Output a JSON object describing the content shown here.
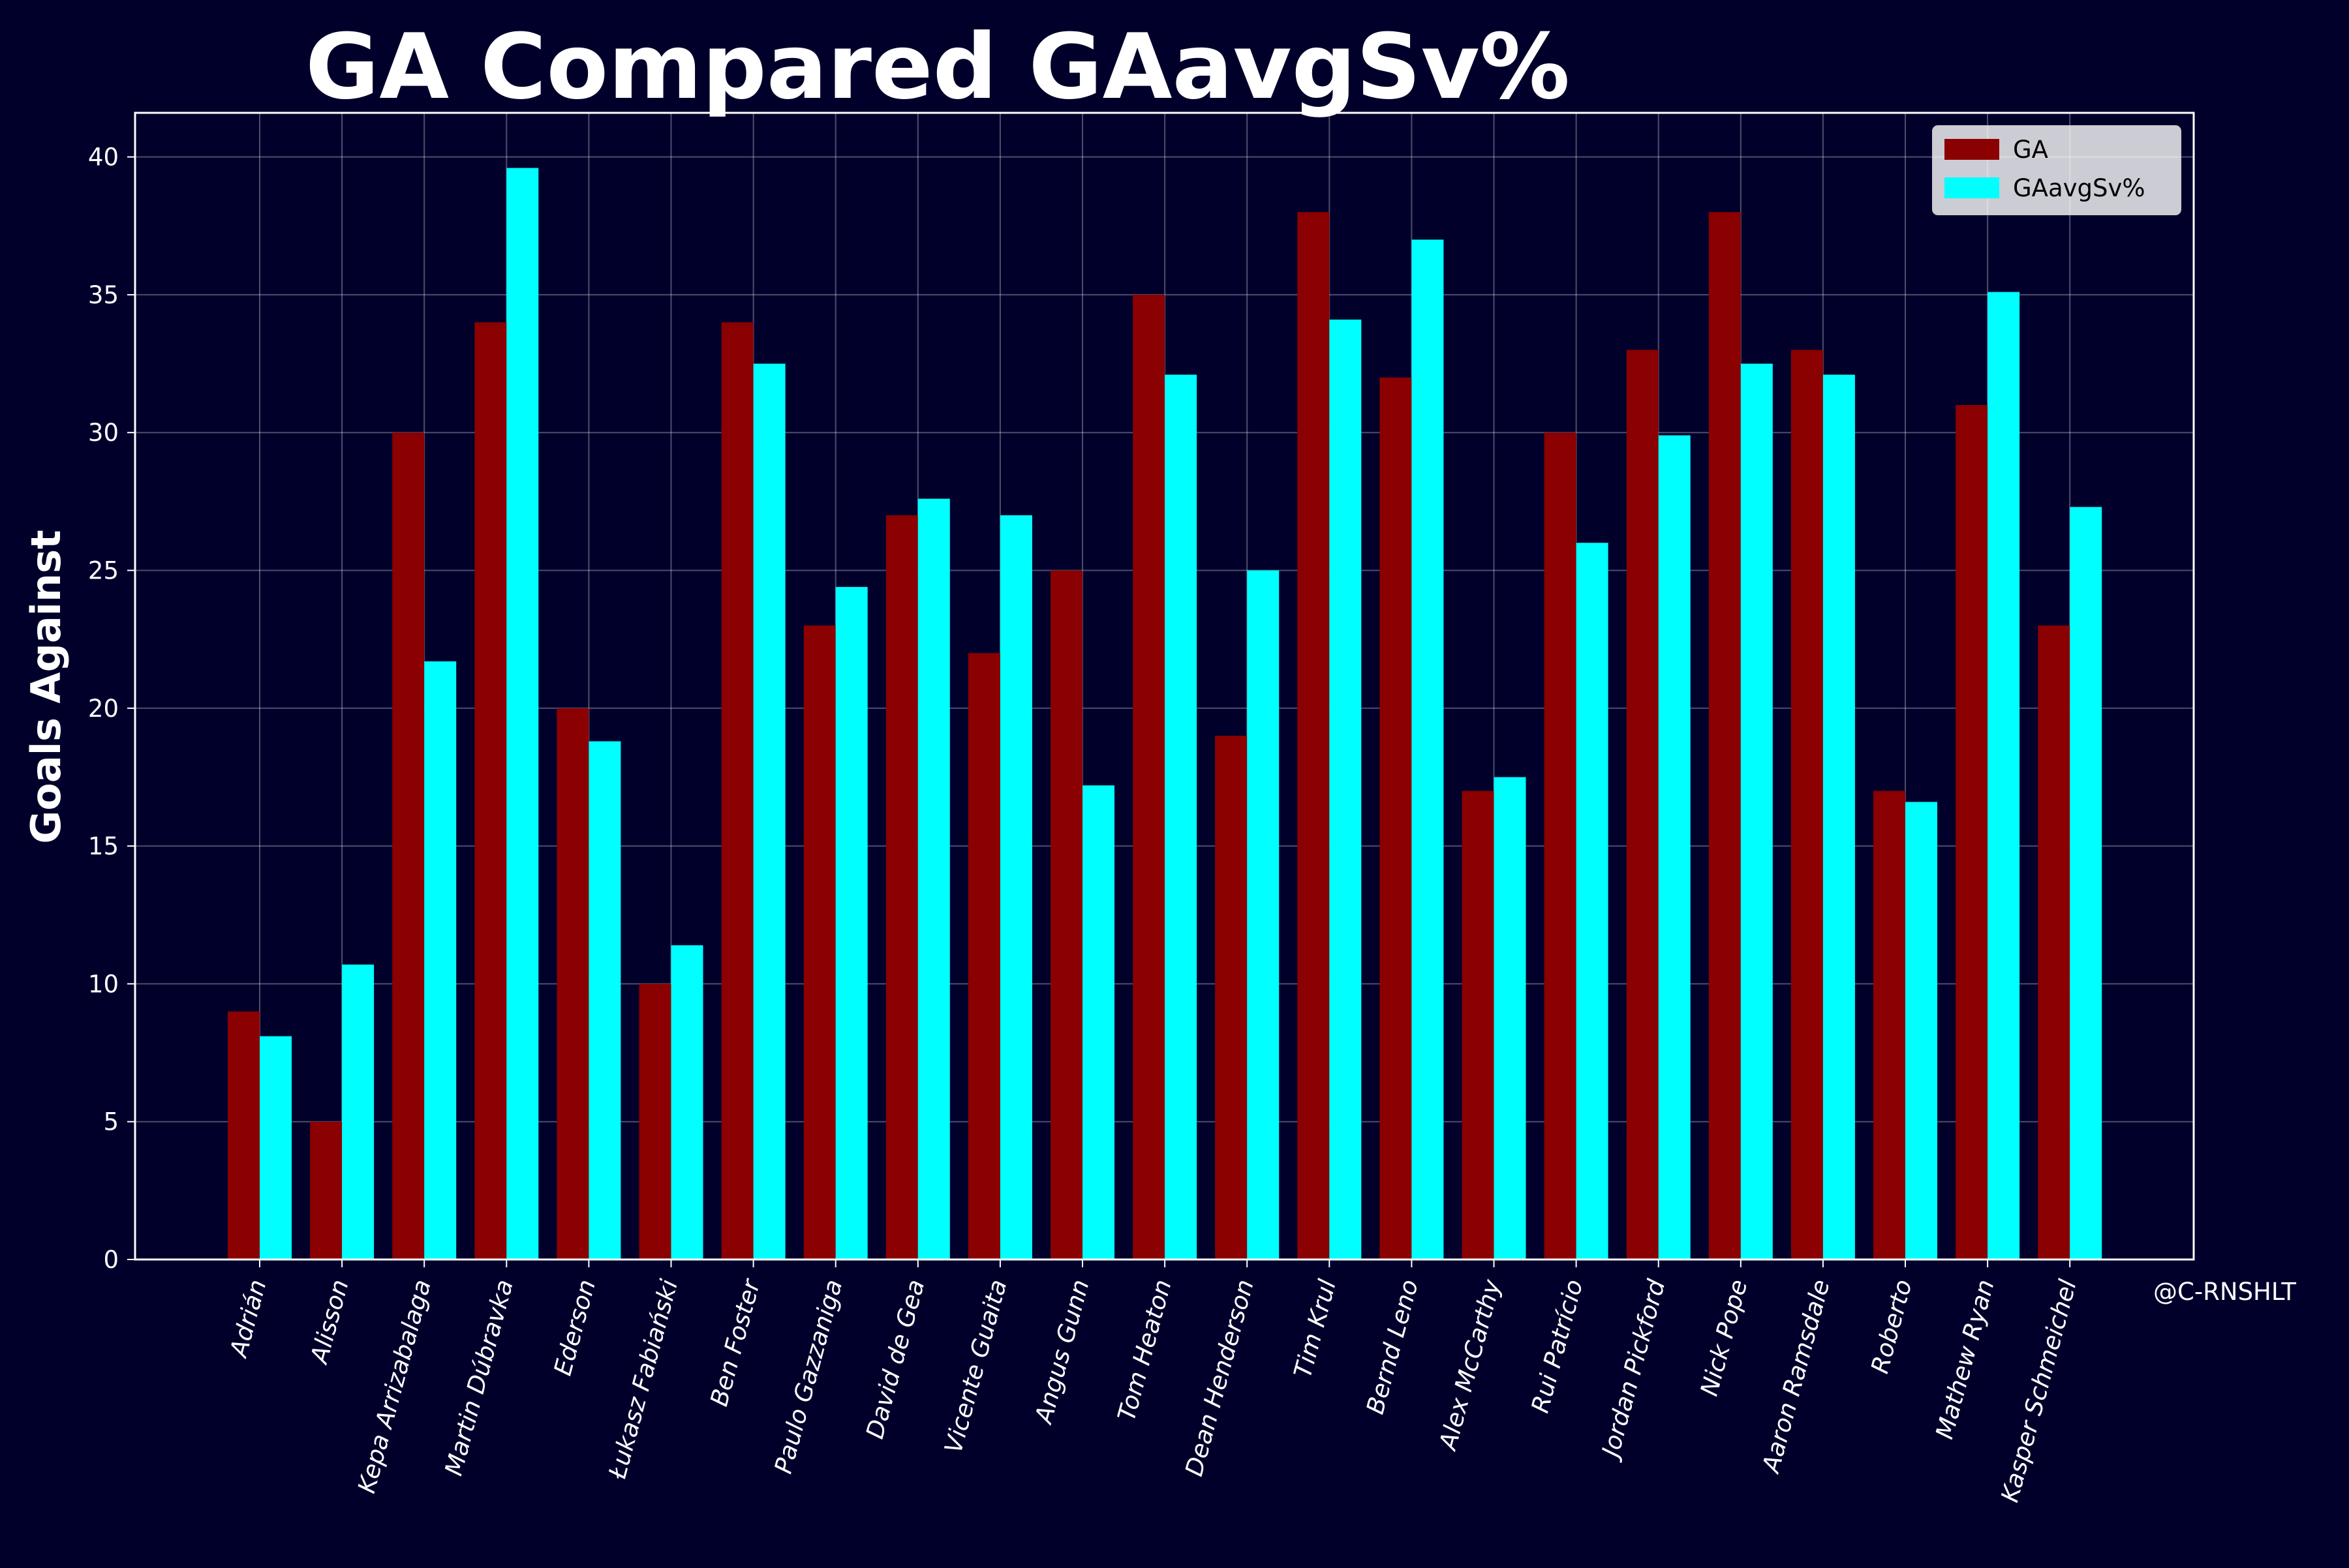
{
  "chart_data": {
    "type": "bar",
    "title": "GA Compared GAavgSv%",
    "ylabel": "Goals Against",
    "xlabel": "",
    "ylim": [
      0,
      41.6
    ],
    "yticks": [
      0,
      5,
      10,
      15,
      20,
      25,
      30,
      35,
      40
    ],
    "grid": true,
    "legend_position": "top-right",
    "credit": "@C-RNSHLT",
    "categories": [
      "Adrián",
      "Alisson",
      "Kepa Arrizabalaga",
      "Martin Dúbravka",
      "Ederson",
      "Łukasz Fabiański",
      "Ben Foster",
      "Paulo Gazzaniga",
      "David de Gea",
      "Vicente Guaita",
      "Angus Gunn",
      "Tom Heaton",
      "Dean Henderson",
      "Tim Krul",
      "Bernd Leno",
      "Alex McCarthy",
      "Rui Patrício",
      "Jordan Pickford",
      "Nick Pope",
      "Aaron Ramsdale",
      "Roberto",
      "Mathew Ryan",
      "Kasper Schmeichel"
    ],
    "series": [
      {
        "name": "GA",
        "color": "#8b0000",
        "values": [
          9,
          5,
          30,
          34,
          20,
          10,
          34,
          23,
          27,
          22,
          25,
          35,
          19,
          38,
          32,
          17,
          30,
          33,
          38,
          33,
          17,
          31,
          23
        ]
      },
      {
        "name": "GAavgSv%",
        "color": "#00ffff",
        "values": [
          8.1,
          10.7,
          21.7,
          39.6,
          18.8,
          11.4,
          32.5,
          24.4,
          27.6,
          27.0,
          17.2,
          32.1,
          25.0,
          34.1,
          37.0,
          17.5,
          26.0,
          29.9,
          32.5,
          32.1,
          16.6,
          35.1,
          27.3
        ]
      }
    ]
  }
}
